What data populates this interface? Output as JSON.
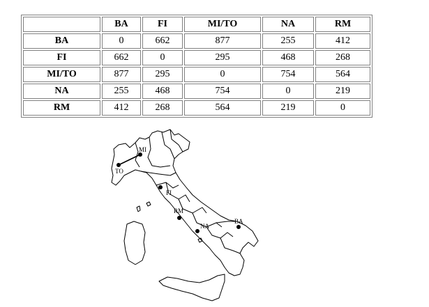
{
  "table": {
    "headers": [
      "",
      "BA",
      "FI",
      "MI/TO",
      "NA",
      "RM"
    ],
    "rows": [
      {
        "label": "BA",
        "values": [
          "0",
          "662",
          "877",
          "255",
          "412"
        ]
      },
      {
        "label": "FI",
        "values": [
          "662",
          "0",
          "295",
          "468",
          "268"
        ]
      },
      {
        "label": "MI/TO",
        "values": [
          "877",
          "295",
          "0",
          "754",
          "564"
        ]
      },
      {
        "label": "NA",
        "values": [
          "255",
          "468",
          "754",
          "0",
          "219"
        ]
      },
      {
        "label": "RM",
        "values": [
          "412",
          "268",
          "564",
          "219",
          "0"
        ]
      }
    ]
  },
  "map": {
    "cities": {
      "mi": "MI",
      "to": "TO",
      "fi": "FI",
      "rm": "RM",
      "na": "NA",
      "ba": "BA"
    }
  }
}
